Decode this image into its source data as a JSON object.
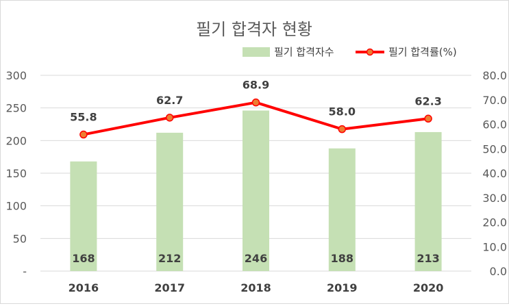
{
  "chart_data": {
    "type": "bar+line",
    "title": "필기 합격자 현황",
    "categories": [
      "2016",
      "2017",
      "2018",
      "2019",
      "2020"
    ],
    "series": [
      {
        "name": "필기 합격자수",
        "type": "bar",
        "axis": "left",
        "values": [
          168,
          212,
          246,
          188,
          213
        ],
        "color": "#c5e0b4"
      },
      {
        "name": "필기 합격률(%)",
        "type": "line",
        "axis": "right",
        "values": [
          55.8,
          62.7,
          68.9,
          58.0,
          62.3
        ],
        "color": "#ff0000",
        "marker_fill": "#ed7d31"
      }
    ],
    "left_axis": {
      "ylim": [
        0,
        300
      ],
      "ticks": [
        "-",
        "50",
        "100",
        "150",
        "200",
        "250",
        "300"
      ]
    },
    "right_axis": {
      "ylim": [
        0,
        80
      ],
      "ticks": [
        "0.0",
        "10.0",
        "20.0",
        "30.0",
        "40.0",
        "50.0",
        "60.0",
        "70.0",
        "80.0"
      ]
    },
    "bar_labels": [
      "168",
      "212",
      "246",
      "188",
      "213"
    ],
    "line_labels": [
      "55.8",
      "62.7",
      "68.9",
      "58.0",
      "62.3"
    ],
    "legend_position": "top-right",
    "grid": true
  }
}
